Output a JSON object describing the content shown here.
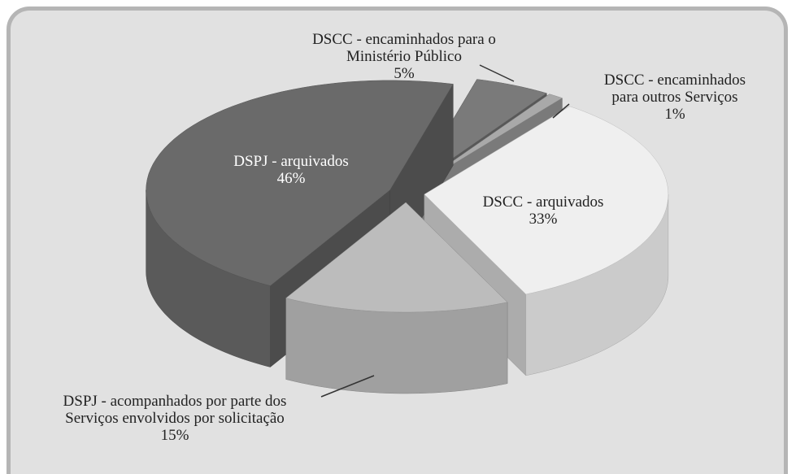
{
  "chart_data": {
    "type": "pie3d",
    "categories": [
      "DSCC - encaminhados para o Ministério Público",
      "DSCC - encaminhados para outros Serviços",
      "DSCC - arquivados",
      "DSPJ - acompanhados por parte dos Serviços envolvidos por solicitação",
      "DSPJ - arquivados"
    ],
    "values": [
      5,
      1,
      33,
      15,
      46
    ],
    "value_labels": [
      "5%",
      "1%",
      "33%",
      "15%",
      "46%"
    ],
    "colors": [
      "#7a7a7a",
      "#a9a9a9",
      "#efefef",
      "#bcbcbc",
      "#6a6a6a"
    ]
  }
}
